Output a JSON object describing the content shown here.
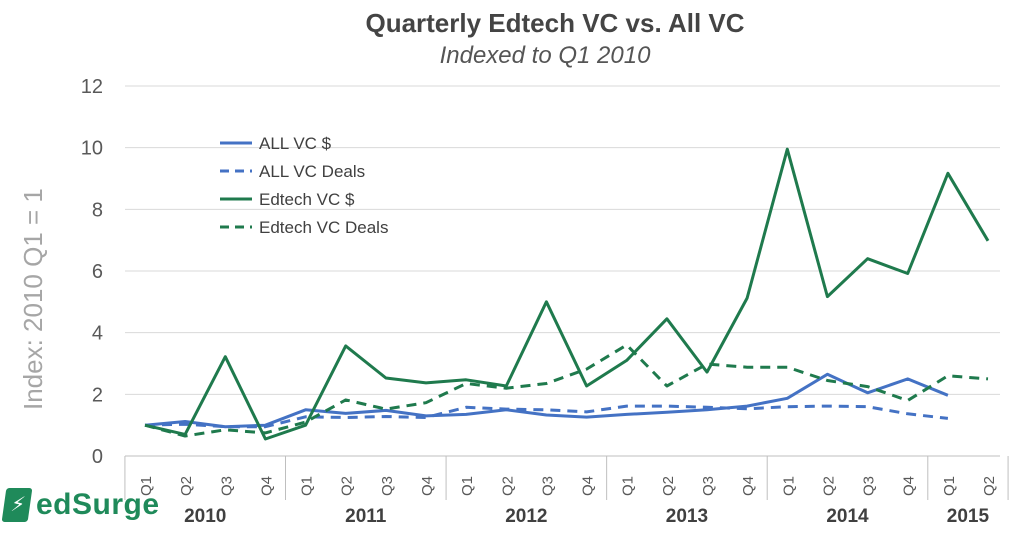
{
  "chart_data": {
    "type": "line",
    "title": "Quarterly Edtech VC vs. All VC",
    "subtitle": "Indexed to Q1 2010",
    "ylabel": "Index: 2010 Q1 = 1",
    "xlabel": "",
    "ylim": [
      0,
      12
    ],
    "yticks": [
      0,
      2,
      4,
      6,
      8,
      10,
      12
    ],
    "grid": true,
    "legend_position": "top-left",
    "categories": [
      "Q1",
      "Q2",
      "Q3",
      "Q4",
      "Q1",
      "Q2",
      "Q3",
      "Q4",
      "Q1",
      "Q2",
      "Q3",
      "Q4",
      "Q1",
      "Q2",
      "Q3",
      "Q4",
      "Q1",
      "Q2",
      "Q3",
      "Q4",
      "Q1",
      "Q2"
    ],
    "year_groups": [
      {
        "label": "2010",
        "quarters": 4
      },
      {
        "label": "2011",
        "quarters": 4
      },
      {
        "label": "2012",
        "quarters": 4
      },
      {
        "label": "2013",
        "quarters": 4
      },
      {
        "label": "2014",
        "quarters": 4
      },
      {
        "label": "2015",
        "quarters": 2
      }
    ],
    "series": [
      {
        "name": "ALL VC $",
        "color": "#4472c4",
        "dash": "solid",
        "values": [
          1.0,
          1.12,
          0.95,
          1.0,
          1.5,
          1.38,
          1.48,
          1.3,
          1.35,
          1.5,
          1.33,
          1.26,
          1.35,
          1.42,
          1.5,
          1.62,
          1.87,
          2.65,
          2.05,
          2.5,
          1.97,
          null
        ]
      },
      {
        "name": "ALL VC Deals",
        "color": "#4472c4",
        "dash": "dashed",
        "values": [
          1.0,
          1.03,
          0.95,
          0.95,
          1.27,
          1.25,
          1.28,
          1.25,
          1.58,
          1.52,
          1.5,
          1.43,
          1.62,
          1.62,
          1.58,
          1.53,
          1.6,
          1.62,
          1.6,
          1.37,
          1.22,
          null
        ]
      },
      {
        "name": "Edtech VC $",
        "color": "#1f7a4d",
        "dash": "solid",
        "values": [
          1.0,
          0.7,
          3.22,
          0.55,
          1.0,
          3.57,
          2.53,
          2.37,
          2.47,
          2.27,
          5.0,
          2.27,
          3.1,
          4.45,
          2.72,
          5.12,
          9.95,
          5.17,
          6.4,
          5.92,
          9.17,
          6.98
        ]
      },
      {
        "name": "Edtech VC Deals",
        "color": "#1f7a4d",
        "dash": "dashed",
        "values": [
          1.0,
          0.65,
          0.85,
          0.75,
          1.1,
          1.82,
          1.52,
          1.73,
          2.35,
          2.2,
          2.35,
          2.82,
          3.6,
          2.27,
          2.98,
          2.88,
          2.88,
          2.45,
          2.25,
          1.8,
          2.6,
          2.5
        ]
      }
    ]
  },
  "brand": {
    "logo_text": "edSurge",
    "color": "#1f8a5a"
  }
}
